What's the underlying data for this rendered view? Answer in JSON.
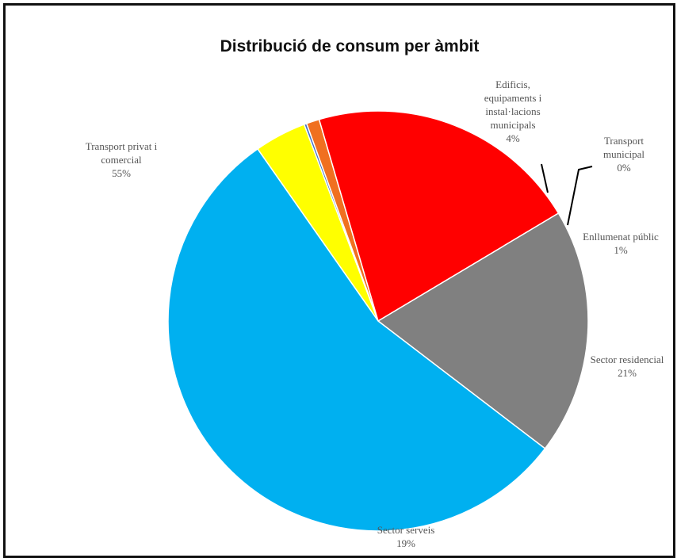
{
  "chart_data": {
    "type": "pie",
    "title": "Distribució de consum per àmbit",
    "slices": [
      {
        "label": "Edificis, equipaments i instal·lacions municipals",
        "value": 4,
        "percent_label": "4%",
        "color": "#ffff00"
      },
      {
        "label": "Transport municipal",
        "value": 0.2,
        "percent_label": "0%",
        "color": "#4472c4"
      },
      {
        "label": "Enllumenat públic",
        "value": 1,
        "percent_label": "1%",
        "color": "#f07020"
      },
      {
        "label": "Sector residencial",
        "value": 21,
        "percent_label": "21%",
        "color": "#ff0000"
      },
      {
        "label": "Sector serveis",
        "value": 19,
        "percent_label": "19%",
        "color": "#808080"
      },
      {
        "label": "Transport privat i comercial",
        "value": 55,
        "percent_label": "55%",
        "color": "#00b0f0"
      }
    ]
  }
}
